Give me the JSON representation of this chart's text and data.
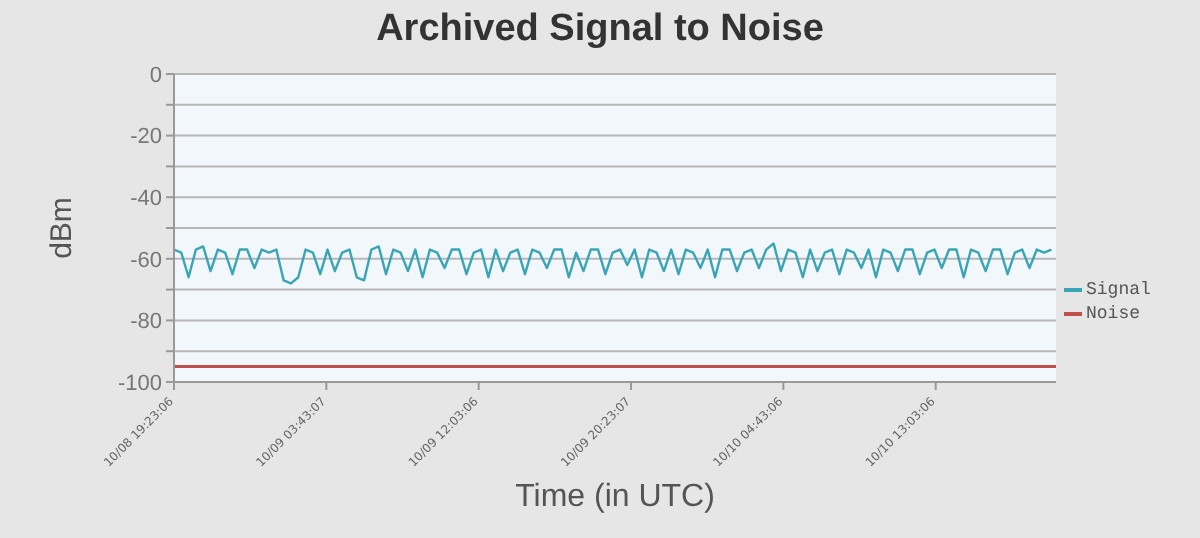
{
  "chart_data": {
    "type": "line",
    "title": "Archived Signal to Noise",
    "xlabel": "Time (in UTC)",
    "ylabel": "dBm",
    "x": [
      "--10-08T19:23:06",
      "--10-08T19:47",
      "--10-08T20:11",
      "--10-08T20:35",
      "--10-08T20:59",
      "--10-08T21:23",
      "--10-08T21:47",
      "--10-08T22:11",
      "--10-08T22:35",
      "--10-08T22:59",
      "--10-08T23:23",
      "--10-08T23:47",
      "--10-09T00:11",
      "--10-09T00:35",
      "--10-09T00:59",
      "--10-09T01:23",
      "--10-09T01:47",
      "--10-09T02:11",
      "--10-09T02:35",
      "--10-09T02:59",
      "--10-09T03:23",
      "--10-09T03:47",
      "--10-09T04:11",
      "--10-09T04:35",
      "--10-09T04:59",
      "--10-09T05:23",
      "--10-09T05:47",
      "--10-09T06:11",
      "--10-09T06:35",
      "--10-09T06:59",
      "--10-09T07:23",
      "--10-09T07:47",
      "--10-09T08:11",
      "--10-09T08:35",
      "--10-09T08:59",
      "--10-09T09:23",
      "--10-09T09:47",
      "--10-09T10:11",
      "--10-09T10:35",
      "--10-09T10:59",
      "--10-09T11:23",
      "--10-09T11:47",
      "--10-09T12:11",
      "--10-09T12:35",
      "--10-09T12:59",
      "--10-09T13:23",
      "--10-09T13:47",
      "--10-09T14:11",
      "--10-09T14:35",
      "--10-09T14:59",
      "--10-09T15:23",
      "--10-09T15:47",
      "--10-09T16:11",
      "--10-09T16:35",
      "--10-09T16:59",
      "--10-09T17:23",
      "--10-09T17:47",
      "--10-09T18:11",
      "--10-09T18:35",
      "--10-09T18:59",
      "--10-09T19:23",
      "--10-09T19:47",
      "--10-09T20:11",
      "--10-09T20:35",
      "--10-09T20:59",
      "--10-09T21:23",
      "--10-09T21:47",
      "--10-09T22:11",
      "--10-09T22:35",
      "--10-09T22:59",
      "--10-09T23:23",
      "--10-09T23:47",
      "--10-10T00:11",
      "--10-10T00:35",
      "--10-10T00:59",
      "--10-10T01:23",
      "--10-10T01:47",
      "--10-10T02:11",
      "--10-10T02:35",
      "--10-10T02:59",
      "--10-10T03:23",
      "--10-10T03:47",
      "--10-10T04:11",
      "--10-10T04:35",
      "--10-10T04:59",
      "--10-10T05:23",
      "--10-10T05:47",
      "--10-10T06:11",
      "--10-10T06:35",
      "--10-10T06:59",
      "--10-10T07:23",
      "--10-10T07:47",
      "--10-10T08:11",
      "--10-10T08:35",
      "--10-10T08:59",
      "--10-10T09:23",
      "--10-10T09:47",
      "--10-10T10:11",
      "--10-10T10:35",
      "--10-10T10:59",
      "--10-10T11:23",
      "--10-10T11:47",
      "--10-10T12:11",
      "--10-10T12:35",
      "--10-10T12:59",
      "--10-10T13:23",
      "--10-10T13:47",
      "--10-10T14:11",
      "--10-10T14:35",
      "--10-10T14:59",
      "--10-10T15:23",
      "--10-10T15:47",
      "--10-10T16:11",
      "--10-10T16:35",
      "--10-10T16:59",
      "--10-10T17:23",
      "--10-10T17:47",
      "--10-10T18:11",
      "--10-10T18:35",
      "--10-10T18:59",
      "--10-10T19:23"
    ],
    "series": [
      {
        "name": "Signal",
        "color": "#3aa5b5",
        "values": [
          -57,
          -58,
          -66,
          -57,
          -56,
          -64,
          -57,
          -58,
          -65,
          -57,
          -57,
          -63,
          -57,
          -58,
          -57,
          -67,
          -68,
          -66,
          -57,
          -58,
          -65,
          -57,
          -64,
          -58,
          -57,
          -66,
          -67,
          -57,
          -56,
          -65,
          -57,
          -58,
          -64,
          -57,
          -66,
          -57,
          -58,
          -63,
          -57,
          -57,
          -65,
          -58,
          -57,
          -66,
          -57,
          -64,
          -58,
          -57,
          -65,
          -57,
          -58,
          -63,
          -57,
          -57,
          -66,
          -58,
          -64,
          -57,
          -57,
          -65,
          -58,
          -57,
          -62,
          -57,
          -66,
          -57,
          -58,
          -64,
          -57,
          -65,
          -57,
          -58,
          -63,
          -57,
          -66,
          -57,
          -57,
          -64,
          -58,
          -57,
          -63,
          -57,
          -55,
          -64,
          -57,
          -58,
          -66,
          -57,
          -64,
          -58,
          -57,
          -65,
          -57,
          -58,
          -63,
          -57,
          -66,
          -57,
          -58,
          -64,
          -57,
          -57,
          -65,
          -58,
          -57,
          -63,
          -57,
          -57,
          -66,
          -57,
          -58,
          -64,
          -57,
          -57,
          -65,
          -58,
          -57,
          -63,
          -57,
          -58,
          -57
        ]
      },
      {
        "name": "Noise",
        "color": "#c0504d",
        "x": [
          "--10-08T19:23:06",
          "--10-10T19:38"
        ],
        "values": [
          -95,
          -95
        ]
      }
    ],
    "xlim": [
      "--10-08T19:23:06",
      "--10-10T19:38"
    ],
    "xticks": [
      {
        "value": "--10-08T19:23:06",
        "label": "10/08 19:23:06"
      },
      {
        "value": "--10-09T03:43:07",
        "label": "10/09 03:43:07"
      },
      {
        "value": "--10-09T12:03:06",
        "label": "10/09 12:03:06"
      },
      {
        "value": "--10-09T20:23:07",
        "label": "10/09 20:23:07"
      },
      {
        "value": "--10-10T04:43:06",
        "label": "10/10 04:43:06"
      },
      {
        "value": "--10-10T13:03:06",
        "label": "10/10 13:03:06"
      }
    ],
    "ylim": [
      -100,
      0
    ],
    "yticks": [
      -100,
      {
        "value": -90,
        "label": null
      },
      -80,
      {
        "value": -70,
        "label": null
      },
      -60,
      {
        "value": -50,
        "label": null
      },
      -40,
      {
        "value": -30,
        "label": null
      },
      -20,
      {
        "value": -10,
        "label": null
      },
      0
    ],
    "grid": "y",
    "legend": "right",
    "marker": "none",
    "line_style": "solid"
  }
}
